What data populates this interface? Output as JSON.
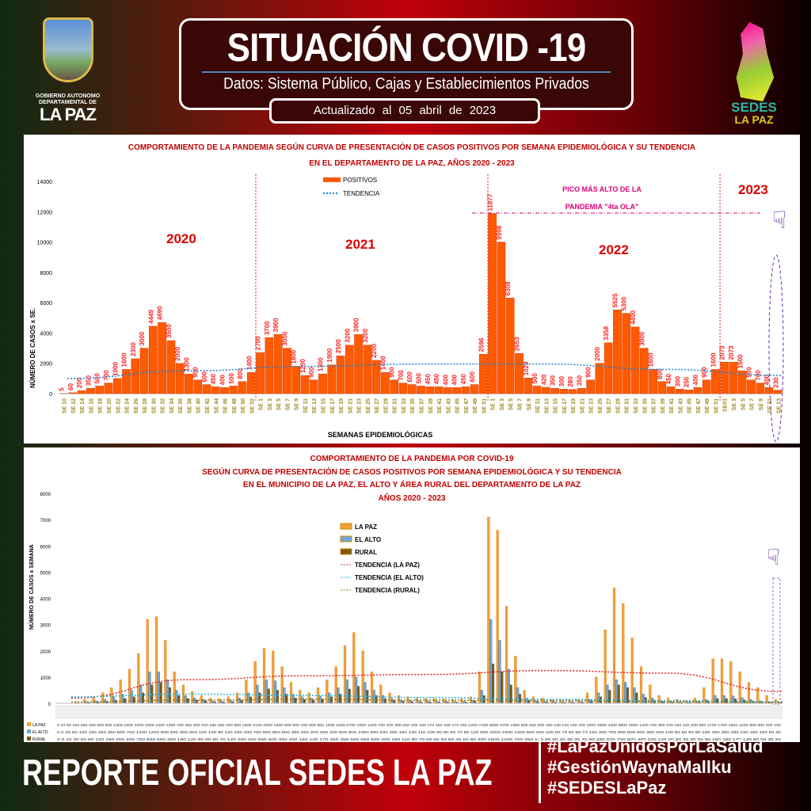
{
  "header": {
    "title": "SITUACIÓN COVID -19",
    "subtitle": "Datos: Sistema Público, Cajas y Establecimientos Privados",
    "updated": "Actualizado al 05 abril de 2023"
  },
  "logos": {
    "left_line1": "GOBIERNO AUTONOMO",
    "left_line2": "DEPARTAMENTAL DE",
    "left_line3": "LA PAZ",
    "right_line1": "SEDES",
    "right_line2": "LA PAZ"
  },
  "colors": {
    "positivos": "#ff5a00",
    "tendencia": "#1f7fd0",
    "la_paz": "#f5a030",
    "el_alto": "#6fa8d8",
    "rural": "#7a5a10",
    "annotation": "#e0007a",
    "year_label": "#e00000"
  },
  "footer": {
    "title": "REPORTE OFICIAL SEDES LA PAZ",
    "hashtags": [
      "#LaPazUnidosPorLaSalud",
      "#GestiónWaynaMallku",
      "#SEDESLaPaz"
    ]
  },
  "chart_data": [
    {
      "type": "bar",
      "title": "COMPORTAMIENTO DE LA PANDEMIA SEGÚN CURVA DE PRESENTACIÓN DE CASOS POSITIVOS POR SEMANA EPIDEMIOLÓGICA Y SU TENDENCIA",
      "subtitle": "EN EL DEPARTAMENTO DE LA PAZ, AÑOS 2020 - 2023",
      "xlabel": "SEMANAS EPIDEMIOLÓGICAS",
      "ylabel": "NÚMERO DE CASOS x SE.",
      "ylim": [
        0,
        14000
      ],
      "yticks": [
        0,
        2000,
        4000,
        6000,
        8000,
        10000,
        12000,
        14000
      ],
      "legend": [
        "POSITIVOS",
        "TENDENCIA"
      ],
      "legend_position": "top-center",
      "year_labels": [
        "2020",
        "2021",
        "2022",
        "2023"
      ],
      "annotation": {
        "line1": "PICO MÁS ALTO DE LA",
        "line2": "PANDEMIA \"4ta OLA\"",
        "peak": 11877
      },
      "categories": [
        "SE 10",
        "SE 12",
        "SE 14",
        "SE 16",
        "SE 18",
        "SE 20",
        "SE 22",
        "SE 24",
        "SE 26",
        "SE 28",
        "SE 30",
        "SE 32",
        "SE 34",
        "SE 36",
        "SE 38",
        "SE 40",
        "SE 42",
        "SE 44",
        "SE 46",
        "SE 48",
        "SE 50",
        "SE 52",
        "SE 1",
        "SE 3",
        "SE 5",
        "SE 7",
        "SE 9",
        "SE 11",
        "SE 13",
        "SE 15",
        "SE 17",
        "SE 19",
        "SE 21",
        "SE 23",
        "SE 25",
        "SE 27",
        "SE 29",
        "SE 31",
        "SE 33",
        "SE 35",
        "SE 37",
        "SE 39",
        "SE 41",
        "SE 43",
        "SE 45",
        "SE 47",
        "SE 49",
        "SE 51",
        "SE 1",
        "SE 3",
        "SE 5",
        "SE 7",
        "SE 9",
        "SE 11",
        "SE 13",
        "SE 15",
        "SE 17",
        "SE 19",
        "SE 21",
        "SE 23",
        "SE 25",
        "SE 27",
        "SE 29",
        "SE 31",
        "SE 33",
        "SE 35",
        "SE 37",
        "SE 39",
        "SE 41",
        "SE 43",
        "SE 45",
        "SE 47",
        "SE 49",
        "SE 51",
        "SE01",
        "SE 3",
        "SE 5",
        "SE 7",
        "SE 9",
        "SE 11",
        "SE 13"
      ],
      "series": [
        {
          "name": "POSITIVOS",
          "values": [
            5,
            60,
            200,
            350,
            500,
            700,
            1000,
            1600,
            2300,
            3000,
            4449,
            4690,
            3500,
            2000,
            1300,
            900,
            600,
            450,
            400,
            500,
            800,
            1400,
            2700,
            3700,
            3900,
            3000,
            1800,
            1200,
            900,
            1300,
            1900,
            2500,
            3200,
            3900,
            3200,
            2200,
            1400,
            900,
            700,
            600,
            500,
            450,
            450,
            400,
            400,
            450,
            600,
            2596,
            11877,
            9998,
            6308,
            2653,
            1029,
            500,
            420,
            350,
            300,
            280,
            350,
            900,
            2000,
            3358,
            5525,
            5300,
            4400,
            3000,
            1600,
            800,
            450,
            300,
            250,
            400,
            900,
            1600,
            2073,
            2073,
            1500,
            900,
            700,
            400,
            230
          ]
        }
      ],
      "trend": [
        1000,
        1500,
        1800,
        1950,
        1950,
        1600,
        1200
      ]
    },
    {
      "type": "bar",
      "title": "COMPORTAMIENTO DE LA PANDEMIA POR COVID-19",
      "subtitle": "SEGÚN CURVA DE PRESENTACIÓN DE CASOS POSITIVOS POR SEMANA EPIDEMIOLÓGICA Y SU TENDENCIA",
      "subtitle2": "EN EL  MUNICIPIO DE LA PAZ, EL ALTO Y ÁREA RURAL DEL DEPARTAMENTO DE LA PAZ",
      "subtitle3": "AÑOS 2020 - 2023",
      "ylabel": "NÚMERO DE CASOS x SEMANA",
      "ylim": [
        0,
        8000
      ],
      "yticks": [
        0,
        1000,
        2000,
        3000,
        4000,
        5000,
        6000,
        7000,
        8000
      ],
      "legend": [
        "LA PAZ",
        "EL ALTO",
        "RURAL",
        "TENDENCIA (LA PAZ)",
        "TENDENCIA (EL ALTO)",
        "TENDENCIA (RURAL)"
      ],
      "legend_position": "center",
      "table_row_labels": [
        "LA PAZ",
        "EL ALTO",
        "RURAL"
      ],
      "series": [
        {
          "name": "LA PAZ",
          "values": [
            0,
            10,
            60,
            150,
            250,
            400,
            600,
            900,
            1300,
            1900,
            3200,
            3300,
            2400,
            1200,
            700,
            450,
            300,
            200,
            180,
            250,
            400,
            900,
            1600,
            2100,
            2000,
            1400,
            800,
            500,
            400,
            600,
            900,
            1400,
            2200,
            2700,
            2000,
            1200,
            700,
            400,
            300,
            250,
            200,
            180,
            170,
            160,
            150,
            170,
            250,
            1200,
            7100,
            6600,
            3700,
            1800,
            500,
            250,
            200,
            150,
            130,
            120,
            150,
            400,
            1000,
            2800,
            4400,
            3800,
            2500,
            1400,
            700,
            300,
            200,
            150,
            120,
            200,
            600,
            1700,
            1700,
            1600,
            1200,
            800,
            600,
            300,
            150
          ]
        },
        {
          "name": "EL ALTO",
          "values": [
            0,
            5,
            20,
            60,
            100,
            150,
            250,
            350,
            500,
            700,
            1200,
            1200,
            900,
            500,
            300,
            200,
            150,
            100,
            90,
            120,
            200,
            400,
            700,
            900,
            850,
            600,
            350,
            250,
            200,
            280,
            400,
            600,
            900,
            1000,
            800,
            500,
            300,
            180,
            130,
            110,
            100,
            90,
            80,
            80,
            70,
            80,
            120,
            500,
            3200,
            2400,
            1300,
            600,
            200,
            100,
            80,
            70,
            60,
            60,
            70,
            150,
            400,
            700,
            900,
            800,
            600,
            350,
            200,
            100,
            80,
            60,
            50,
            80,
            150,
            300,
            300,
            280,
            220,
            150,
            100,
            60,
            30
          ]
        },
        {
          "name": "RURAL",
          "values": [
            0,
            0,
            10,
            30,
            50,
            80,
            120,
            180,
            250,
            400,
            700,
            800,
            600,
            300,
            180,
            120,
            90,
            60,
            50,
            70,
            120,
            250,
            400,
            550,
            500,
            350,
            200,
            150,
            120,
            170,
            250,
            350,
            550,
            650,
            500,
            300,
            180,
            110,
            80,
            70,
            60,
            55,
            50,
            50,
            45,
            50,
            80,
            300,
            1500,
            1200,
            700,
            350,
            120,
            60,
            50,
            40,
            35,
            35,
            40,
            90,
            250,
            500,
            700,
            600,
            400,
            220,
            120,
            60,
            50,
            40,
            30,
            50,
            90,
            180,
            180,
            170,
            130,
            90,
            60,
            35,
            20
          ]
        }
      ],
      "trends": {
        "la_paz": [
          200,
          900,
          1050,
          1100,
          1250,
          1150,
          450
        ],
        "el_alto": [
          250,
          350,
          300,
          220,
          150,
          100,
          60
        ],
        "rural": [
          50,
          120,
          150,
          120,
          100,
          60,
          30
        ]
      }
    }
  ]
}
